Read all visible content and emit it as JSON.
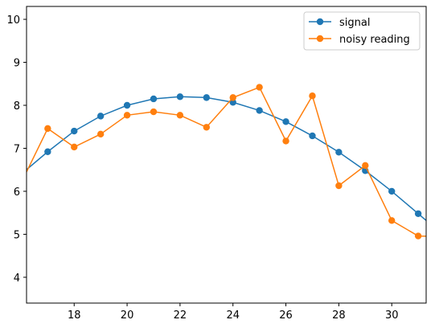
{
  "chart_data": {
    "type": "line",
    "title": "",
    "xlabel": "",
    "ylabel": "",
    "xlim": [
      16.2,
      31.3
    ],
    "ylim": [
      3.4,
      10.3
    ],
    "x_ticks": [
      18,
      20,
      22,
      24,
      26,
      28,
      30
    ],
    "y_ticks": [
      4,
      5,
      6,
      7,
      8,
      9,
      10
    ],
    "grid": false,
    "legend_position": "top-right",
    "x": [
      16,
      17,
      18,
      19,
      20,
      21,
      22,
      23,
      24,
      25,
      26,
      27,
      28,
      29,
      30,
      31,
      32
    ],
    "series": [
      {
        "name": "signal",
        "color": "#1f77b4",
        "marker": "circle",
        "values": [
          6.4,
          6.92,
          7.4,
          7.75,
          8.0,
          8.15,
          8.2,
          8.18,
          8.07,
          7.88,
          7.62,
          7.29,
          6.91,
          6.48,
          6.0,
          5.48,
          4.95
        ]
      },
      {
        "name": "noisy reading",
        "color": "#ff7f0e",
        "marker": "circle",
        "values": [
          6.2,
          7.46,
          7.03,
          7.33,
          7.77,
          7.85,
          7.77,
          7.49,
          8.18,
          8.42,
          7.17,
          8.22,
          6.13,
          6.6,
          5.32,
          4.96,
          4.95
        ]
      }
    ]
  }
}
